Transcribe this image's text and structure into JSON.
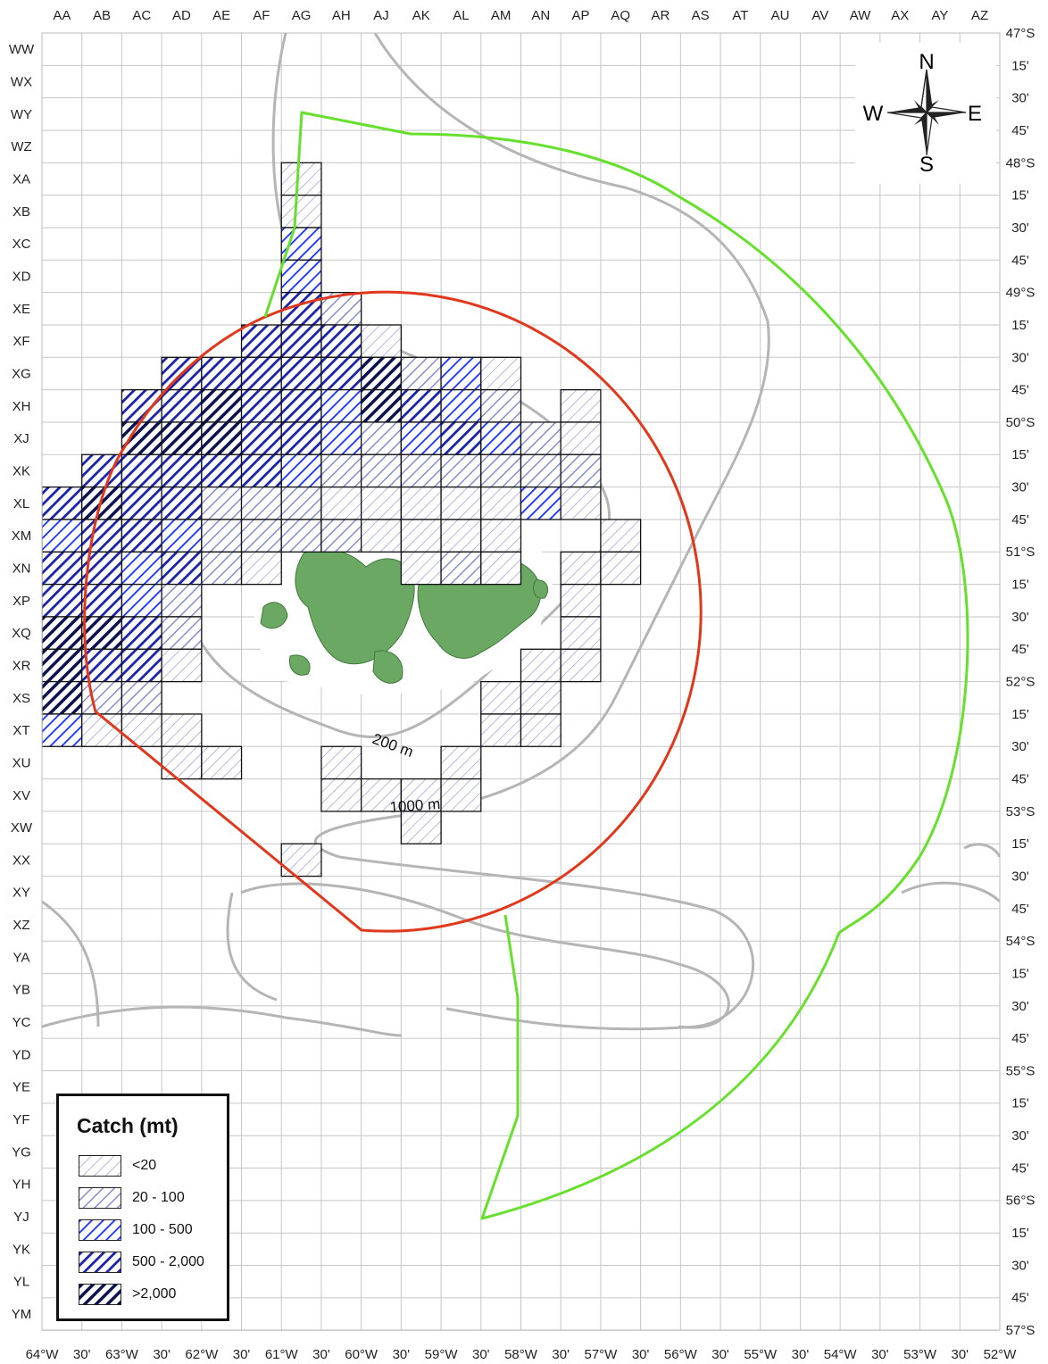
{
  "columns": [
    "AA",
    "AB",
    "AC",
    "AD",
    "AE",
    "AF",
    "AG",
    "AH",
    "AJ",
    "AK",
    "AL",
    "AM",
    "AN",
    "AP",
    "AQ",
    "AR",
    "AS",
    "AT",
    "AU",
    "AV",
    "AW",
    "AX",
    "AY",
    "AZ"
  ],
  "rows": [
    "WW",
    "WX",
    "WY",
    "WZ",
    "XA",
    "XB",
    "XC",
    "XD",
    "XE",
    "XF",
    "XG",
    "XH",
    "XJ",
    "XK",
    "XL",
    "XM",
    "XN",
    "XP",
    "XQ",
    "XR",
    "XS",
    "XT",
    "XU",
    "XV",
    "XW",
    "XX",
    "XY",
    "XZ",
    "YA",
    "YB",
    "YC",
    "YD",
    "YE",
    "YF",
    "YG",
    "YH",
    "YJ",
    "YK",
    "YL",
    "YM"
  ],
  "latitude_labels": [
    "47°S",
    "15'",
    "30'",
    "45'",
    "48°S",
    "15'",
    "30'",
    "45'",
    "49°S",
    "15'",
    "30'",
    "45'",
    "50°S",
    "15'",
    "30'",
    "45'",
    "51°S",
    "15'",
    "30'",
    "45'",
    "52°S",
    "15'",
    "30'",
    "45'",
    "53°S",
    "15'",
    "30'",
    "45'",
    "54°S",
    "15'",
    "30'",
    "45'",
    "55°S",
    "15'",
    "30'",
    "45'",
    "56°S",
    "15'",
    "30'",
    "45'",
    "57°S"
  ],
  "longitude_labels": [
    "64°W",
    "30'",
    "63°W",
    "30'",
    "62°W",
    "30'",
    "61°W",
    "30'",
    "60°W",
    "30'",
    "59°W",
    "30'",
    "58°W",
    "30'",
    "57°W",
    "30'",
    "56°W",
    "30'",
    "55°W",
    "30'",
    "54°W",
    "30'",
    "53°W",
    "30'",
    "52°W"
  ],
  "legend": {
    "title": "Catch (mt)",
    "classes": [
      {
        "label": "<20",
        "color": "#a8acd8"
      },
      {
        "label": "20 - 100",
        "color": "#7f86c8"
      },
      {
        "label": "100 - 500",
        "color": "#1a33ff"
      },
      {
        "label": "500 - 2,000",
        "color": "#1a22a8"
      },
      {
        "label": ">2,000",
        "color": "#0b1250"
      }
    ]
  },
  "compass": {
    "north": "N",
    "south": "S",
    "east": "E",
    "west": "W"
  },
  "contours": {
    "shallow": "200 m",
    "deep": "1000 m"
  },
  "colors": {
    "grid": "#c6c6c6",
    "contour": "#b5b5b5",
    "land": "#6aa864",
    "inner_zone": "#e0381c",
    "outer_zone": "#66e02c"
  },
  "catch_cells": [
    {
      "row": "XA",
      "col": "AG",
      "c": 1
    },
    {
      "row": "XB",
      "col": "AG",
      "c": 1
    },
    {
      "row": "XC",
      "col": "AG",
      "c": 3
    },
    {
      "row": "XD",
      "col": "AG",
      "c": 3
    },
    {
      "row": "XE",
      "col": "AG",
      "c": 4
    },
    {
      "row": "XE",
      "col": "AH",
      "c": 2
    },
    {
      "row": "XF",
      "col": "AF",
      "c": 4
    },
    {
      "row": "XF",
      "col": "AG",
      "c": 4
    },
    {
      "row": "XF",
      "col": "AH",
      "c": 4
    },
    {
      "row": "XF",
      "col": "AJ",
      "c": 1
    },
    {
      "row": "XG",
      "col": "AD",
      "c": 4
    },
    {
      "row": "XG",
      "col": "AE",
      "c": 4
    },
    {
      "row": "XG",
      "col": "AF",
      "c": 4
    },
    {
      "row": "XG",
      "col": "AG",
      "c": 4
    },
    {
      "row": "XG",
      "col": "AH",
      "c": 4
    },
    {
      "row": "XG",
      "col": "AJ",
      "c": 5
    },
    {
      "row": "XG",
      "col": "AK",
      "c": 2
    },
    {
      "row": "XG",
      "col": "AL",
      "c": 3
    },
    {
      "row": "XG",
      "col": "AM",
      "c": 1
    },
    {
      "row": "XH",
      "col": "AC",
      "c": 4
    },
    {
      "row": "XH",
      "col": "AD",
      "c": 4
    },
    {
      "row": "XH",
      "col": "AE",
      "c": 5
    },
    {
      "row": "XH",
      "col": "AF",
      "c": 4
    },
    {
      "row": "XH",
      "col": "AG",
      "c": 4
    },
    {
      "row": "XH",
      "col": "AH",
      "c": 3
    },
    {
      "row": "XH",
      "col": "AJ",
      "c": 5
    },
    {
      "row": "XH",
      "col": "AK",
      "c": 4
    },
    {
      "row": "XH",
      "col": "AL",
      "c": 3
    },
    {
      "row": "XH",
      "col": "AM",
      "c": 2
    },
    {
      "row": "XH",
      "col": "AP",
      "c": 1
    },
    {
      "row": "XJ",
      "col": "AC",
      "c": 5
    },
    {
      "row": "XJ",
      "col": "AD",
      "c": 5
    },
    {
      "row": "XJ",
      "col": "AE",
      "c": 5
    },
    {
      "row": "XJ",
      "col": "AF",
      "c": 4
    },
    {
      "row": "XJ",
      "col": "AG",
      "c": 4
    },
    {
      "row": "XJ",
      "col": "AH",
      "c": 3
    },
    {
      "row": "XJ",
      "col": "AJ",
      "c": 2
    },
    {
      "row": "XJ",
      "col": "AK",
      "c": 3
    },
    {
      "row": "XJ",
      "col": "AL",
      "c": 4
    },
    {
      "row": "XJ",
      "col": "AM",
      "c": 3
    },
    {
      "row": "XJ",
      "col": "AN",
      "c": 2
    },
    {
      "row": "XJ",
      "col": "AP",
      "c": 1
    },
    {
      "row": "XK",
      "col": "AB",
      "c": 4
    },
    {
      "row": "XK",
      "col": "AC",
      "c": 4
    },
    {
      "row": "XK",
      "col": "AD",
      "c": 4
    },
    {
      "row": "XK",
      "col": "AE",
      "c": 4
    },
    {
      "row": "XK",
      "col": "AF",
      "c": 4
    },
    {
      "row": "XK",
      "col": "AG",
      "c": 3
    },
    {
      "row": "XK",
      "col": "AH",
      "c": 2
    },
    {
      "row": "XK",
      "col": "AJ",
      "c": 2
    },
    {
      "row": "XK",
      "col": "AK",
      "c": 2
    },
    {
      "row": "XK",
      "col": "AL",
      "c": 2
    },
    {
      "row": "XK",
      "col": "AM",
      "c": 2
    },
    {
      "row": "XK",
      "col": "AN",
      "c": 2
    },
    {
      "row": "XK",
      "col": "AP",
      "c": 2
    },
    {
      "row": "XL",
      "col": "AA",
      "c": 4
    },
    {
      "row": "XL",
      "col": "AB",
      "c": 5
    },
    {
      "row": "XL",
      "col": "AC",
      "c": 4
    },
    {
      "row": "XL",
      "col": "AD",
      "c": 4
    },
    {
      "row": "XL",
      "col": "AE",
      "c": 2
    },
    {
      "row": "XL",
      "col": "AF",
      "c": 2
    },
    {
      "row": "XL",
      "col": "AG",
      "c": 2
    },
    {
      "row": "XL",
      "col": "AH",
      "c": 1
    },
    {
      "row": "XL",
      "col": "AJ",
      "c": 1
    },
    {
      "row": "XL",
      "col": "AK",
      "c": 1
    },
    {
      "row": "XL",
      "col": "AL",
      "c": 1
    },
    {
      "row": "XL",
      "col": "AM",
      "c": 1
    },
    {
      "row": "XL",
      "col": "AN",
      "c": 3
    },
    {
      "row": "XL",
      "col": "AP",
      "c": 1
    },
    {
      "row": "XM",
      "col": "AA",
      "c": 3
    },
    {
      "row": "XM",
      "col": "AB",
      "c": 4
    },
    {
      "row": "XM",
      "col": "AC",
      "c": 4
    },
    {
      "row": "XM",
      "col": "AD",
      "c": 3
    },
    {
      "row": "XM",
      "col": "AE",
      "c": 2
    },
    {
      "row": "XM",
      "col": "AF",
      "c": 2
    },
    {
      "row": "XM",
      "col": "AG",
      "c": 2
    },
    {
      "row": "XM",
      "col": "AH",
      "c": 2
    },
    {
      "row": "XM",
      "col": "AJ",
      "c": 1
    },
    {
      "row": "XM",
      "col": "AK",
      "c": 1
    },
    {
      "row": "XM",
      "col": "AL",
      "c": 1
    },
    {
      "row": "XM",
      "col": "AM",
      "c": 1
    },
    {
      "row": "XM",
      "col": "AQ",
      "c": 1
    },
    {
      "row": "XN",
      "col": "AA",
      "c": 4
    },
    {
      "row": "XN",
      "col": "AB",
      "c": 4
    },
    {
      "row": "XN",
      "col": "AC",
      "c": 3
    },
    {
      "row": "XN",
      "col": "AD",
      "c": 4
    },
    {
      "row": "XN",
      "col": "AE",
      "c": 2
    },
    {
      "row": "XN",
      "col": "AF",
      "c": 1
    },
    {
      "row": "XN",
      "col": "AK",
      "c": 1
    },
    {
      "row": "XN",
      "col": "AL",
      "c": 2
    },
    {
      "row": "XN",
      "col": "AM",
      "c": 1
    },
    {
      "row": "XN",
      "col": "AP",
      "c": 1
    },
    {
      "row": "XN",
      "col": "AQ",
      "c": 1
    },
    {
      "row": "XP",
      "col": "AA",
      "c": 4
    },
    {
      "row": "XP",
      "col": "AB",
      "c": 4
    },
    {
      "row": "XP",
      "col": "AC",
      "c": 3
    },
    {
      "row": "XP",
      "col": "AD",
      "c": 2
    },
    {
      "row": "XP",
      "col": "AP",
      "c": 1
    },
    {
      "row": "XQ",
      "col": "AA",
      "c": 5
    },
    {
      "row": "XQ",
      "col": "AB",
      "c": 5
    },
    {
      "row": "XQ",
      "col": "AC",
      "c": 4
    },
    {
      "row": "XQ",
      "col": "AD",
      "c": 2
    },
    {
      "row": "XQ",
      "col": "AP",
      "c": 1
    },
    {
      "row": "XR",
      "col": "AA",
      "c": 5
    },
    {
      "row": "XR",
      "col": "AB",
      "c": 4
    },
    {
      "row": "XR",
      "col": "AC",
      "c": 4
    },
    {
      "row": "XR",
      "col": "AD",
      "c": 1
    },
    {
      "row": "XR",
      "col": "AN",
      "c": 1
    },
    {
      "row": "XR",
      "col": "AP",
      "c": 1
    },
    {
      "row": "XS",
      "col": "AA",
      "c": 5
    },
    {
      "row": "XS",
      "col": "AB",
      "c": 2
    },
    {
      "row": "XS",
      "col": "AC",
      "c": 2
    },
    {
      "row": "XS",
      "col": "AM",
      "c": 1
    },
    {
      "row": "XS",
      "col": "AN",
      "c": 1
    },
    {
      "row": "XT",
      "col": "AA",
      "c": 3
    },
    {
      "row": "XT",
      "col": "AB",
      "c": 1
    },
    {
      "row": "XT",
      "col": "AC",
      "c": 1
    },
    {
      "row": "XT",
      "col": "AD",
      "c": 1
    },
    {
      "row": "XT",
      "col": "AM",
      "c": 1
    },
    {
      "row": "XT",
      "col": "AN",
      "c": 1
    },
    {
      "row": "XU",
      "col": "AD",
      "c": 1
    },
    {
      "row": "XU",
      "col": "AE",
      "c": 1
    },
    {
      "row": "XU",
      "col": "AH",
      "c": 1
    },
    {
      "row": "XU",
      "col": "AL",
      "c": 1
    },
    {
      "row": "XV",
      "col": "AH",
      "c": 1
    },
    {
      "row": "XV",
      "col": "AJ",
      "c": 1
    },
    {
      "row": "XV",
      "col": "AK",
      "c": 1
    },
    {
      "row": "XV",
      "col": "AL",
      "c": 1
    },
    {
      "row": "XW",
      "col": "AK",
      "c": 1
    },
    {
      "row": "XX",
      "col": "AG",
      "c": 1
    }
  ]
}
